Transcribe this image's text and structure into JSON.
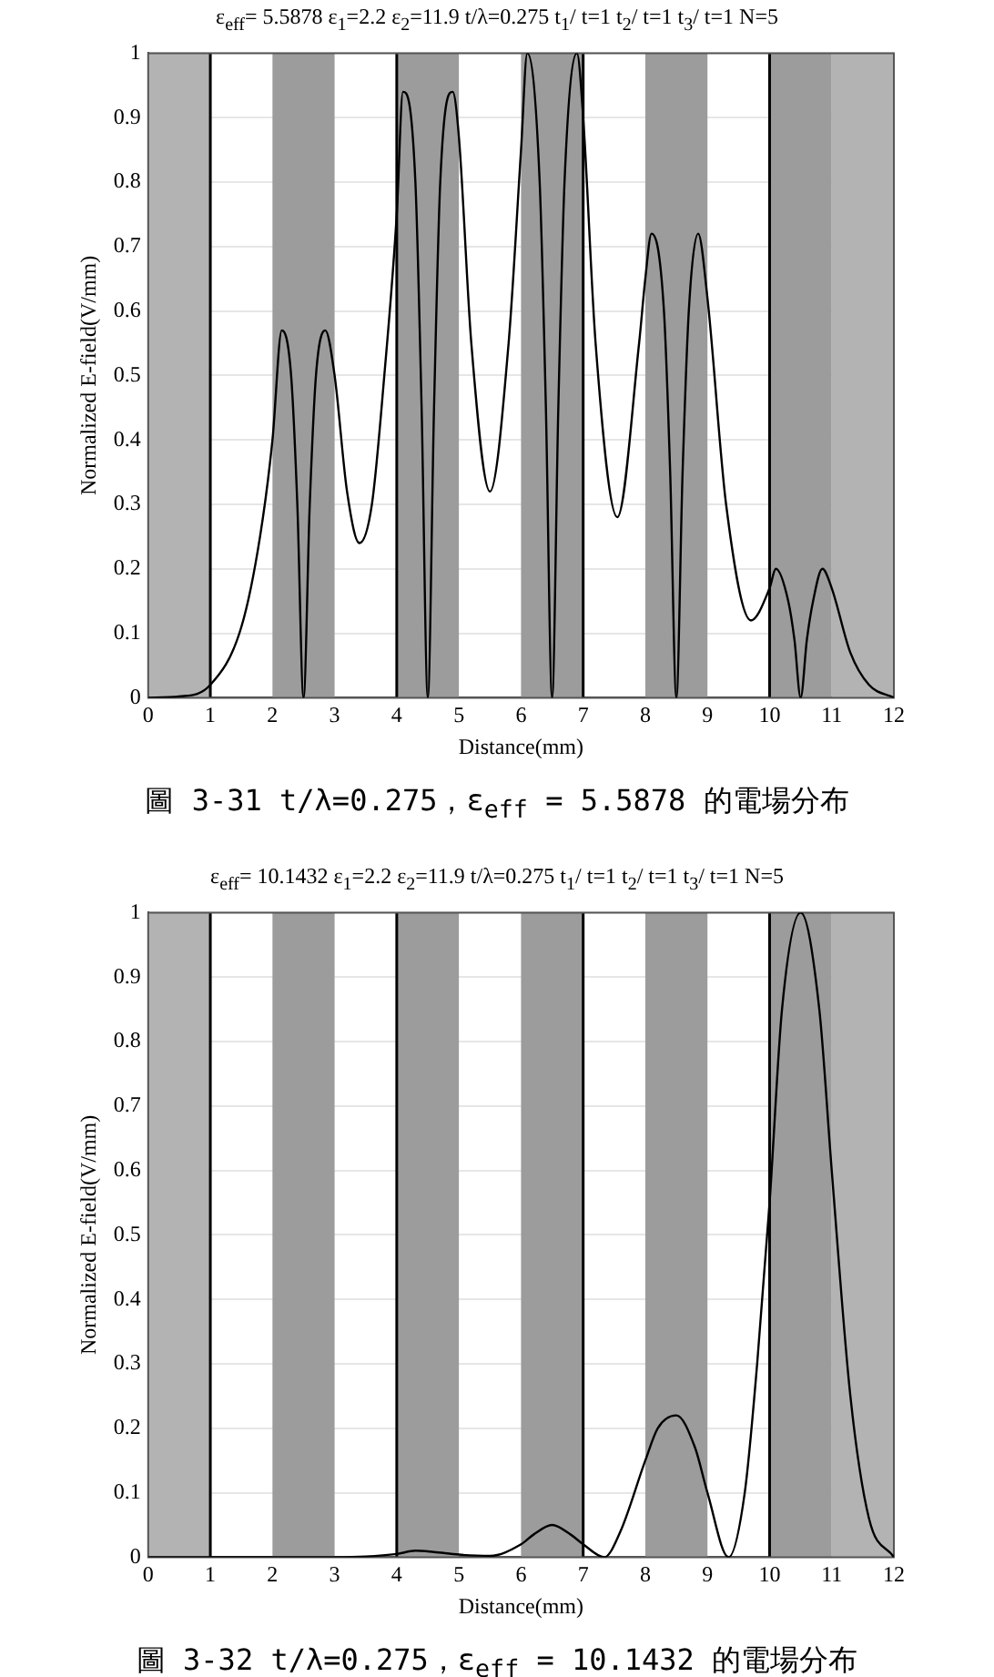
{
  "chart_data": [
    {
      "type": "line",
      "title": "ε$_{eff}$= 5.5878  ε$_{1}$=2.2  ε$_{2}$=11.9  t/λ=0.275 t$_{1}$/ t=1 t$_{2}$/ t=1 t$_{3}$/ t=1 N=5",
      "xlabel": "Distance(mm)",
      "ylabel": "Normalized E-field(V/mm)",
      "x": [
        0,
        0.5,
        1,
        1.5,
        1.8,
        2,
        2.15,
        2.3,
        2.4,
        2.5,
        2.6,
        2.7,
        2.85,
        3,
        3.2,
        3.4,
        3.6,
        3.8,
        4,
        4.1,
        4.3,
        4.4,
        4.5,
        4.6,
        4.7,
        4.9,
        5,
        5.2,
        5.5,
        5.8,
        6,
        6.1,
        6.3,
        6.4,
        6.5,
        6.6,
        6.7,
        6.9,
        7,
        7.2,
        7.55,
        7.9,
        8,
        8.1,
        8.3,
        8.4,
        8.5,
        8.6,
        8.7,
        8.85,
        9,
        9.3,
        9.7,
        10,
        10.1,
        10.3,
        10.4,
        10.5,
        10.6,
        10.7,
        10.85,
        11,
        11.3,
        11.6,
        12
      ],
      "series": [
        {
          "color": "#000000",
          "values": [
            0,
            0.002,
            0.02,
            0.11,
            0.25,
            0.4,
            0.57,
            0.5,
            0.3,
            0,
            0.3,
            0.5,
            0.57,
            0.5,
            0.32,
            0.24,
            0.3,
            0.5,
            0.75,
            0.94,
            0.8,
            0.45,
            0,
            0.45,
            0.8,
            0.94,
            0.87,
            0.55,
            0.32,
            0.55,
            0.85,
            1,
            0.8,
            0.45,
            0,
            0.45,
            0.8,
            1,
            0.9,
            0.55,
            0.28,
            0.55,
            0.65,
            0.72,
            0.6,
            0.35,
            0,
            0.35,
            0.6,
            0.72,
            0.62,
            0.3,
            0.12,
            0.17,
            0.2,
            0.15,
            0.09,
            0,
            0.09,
            0.15,
            0.2,
            0.17,
            0.07,
            0.02,
            0
          ]
        }
      ],
      "xlim": [
        0,
        12
      ],
      "xticks": [
        0,
        1,
        2,
        3,
        4,
        5,
        6,
        7,
        8,
        9,
        10,
        11,
        12
      ],
      "ylim": [
        0,
        1
      ],
      "yticks": [
        0,
        0.1,
        0.2,
        0.3,
        0.4,
        0.5,
        0.6,
        0.7,
        0.8,
        0.9,
        1
      ],
      "grid": "y",
      "legend": false,
      "marker": "none",
      "line_style": "solid",
      "bands": [
        {
          "axis": "x",
          "from": 0,
          "to": 1,
          "color": "#b3b3b3"
        },
        {
          "axis": "x",
          "from": 2,
          "to": 3,
          "color": "#9c9c9c"
        },
        {
          "axis": "x",
          "from": 4,
          "to": 5,
          "color": "#9c9c9c"
        },
        {
          "axis": "x",
          "from": 6,
          "to": 7,
          "color": "#9c9c9c"
        },
        {
          "axis": "x",
          "from": 8,
          "to": 9,
          "color": "#9c9c9c"
        },
        {
          "axis": "x",
          "from": 10,
          "to": 11,
          "color": "#9c9c9c"
        },
        {
          "axis": "x",
          "from": 11,
          "to": 12,
          "color": "#b3b3b3"
        }
      ],
      "ref_lines": [
        {
          "axis": "x",
          "value": 1,
          "color": "#000000"
        },
        {
          "axis": "x",
          "value": 4,
          "color": "#000000"
        },
        {
          "axis": "x",
          "value": 7,
          "color": "#000000"
        },
        {
          "axis": "x",
          "value": 10,
          "color": "#000000"
        }
      ],
      "annotations": [
        "圖 3-31 t/λ=0.275，ε$_{eff}$ = 5.5878 的電場分布"
      ]
    },
    {
      "type": "line",
      "title": "ε$_{eff}$= 10.1432  ε$_{1}$=2.2  ε$_{2}$=11.9  t/λ=0.275 t$_{1}$/ t=1 t$_{2}$/ t=1 t$_{3}$/ t=1 N=5",
      "xlabel": "Distance(mm)",
      "ylabel": "Normalized E-field(V/mm)",
      "x": [
        0,
        1,
        2,
        3,
        3.5,
        4,
        4.3,
        4.6,
        5,
        5.5,
        6,
        6.2,
        6.5,
        6.8,
        7,
        7.34,
        7.6,
        8,
        8.2,
        8.5,
        8.8,
        9,
        9.34,
        9.6,
        9.8,
        10,
        10.2,
        10.5,
        10.8,
        11,
        11.3,
        11.6,
        12
      ],
      "series": [
        {
          "color": "#000000",
          "values": [
            0,
            0,
            0,
            0,
            0.001,
            0.005,
            0.01,
            0.008,
            0.004,
            0.002,
            0.02,
            0.035,
            0.05,
            0.035,
            0.02,
            0,
            0.04,
            0.15,
            0.2,
            0.22,
            0.17,
            0.1,
            0,
            0.1,
            0.3,
            0.55,
            0.85,
            1,
            0.85,
            0.6,
            0.25,
            0.06,
            0
          ]
        }
      ],
      "xlim": [
        0,
        12
      ],
      "xticks": [
        0,
        1,
        2,
        3,
        4,
        5,
        6,
        7,
        8,
        9,
        10,
        11,
        12
      ],
      "ylim": [
        0,
        1
      ],
      "yticks": [
        0,
        0.1,
        0.2,
        0.3,
        0.4,
        0.5,
        0.6,
        0.7,
        0.8,
        0.9,
        1
      ],
      "grid": "y",
      "legend": false,
      "marker": "none",
      "line_style": "solid",
      "bands": [
        {
          "axis": "x",
          "from": 0,
          "to": 1,
          "color": "#b3b3b3"
        },
        {
          "axis": "x",
          "from": 2,
          "to": 3,
          "color": "#9c9c9c"
        },
        {
          "axis": "x",
          "from": 4,
          "to": 5,
          "color": "#9c9c9c"
        },
        {
          "axis": "x",
          "from": 6,
          "to": 7,
          "color": "#9c9c9c"
        },
        {
          "axis": "x",
          "from": 8,
          "to": 9,
          "color": "#9c9c9c"
        },
        {
          "axis": "x",
          "from": 10,
          "to": 11,
          "color": "#9c9c9c"
        },
        {
          "axis": "x",
          "from": 11,
          "to": 12,
          "color": "#b3b3b3"
        }
      ],
      "ref_lines": [
        {
          "axis": "x",
          "value": 1,
          "color": "#000000"
        },
        {
          "axis": "x",
          "value": 4,
          "color": "#000000"
        },
        {
          "axis": "x",
          "value": 7,
          "color": "#000000"
        },
        {
          "axis": "x",
          "value": 10,
          "color": "#000000"
        }
      ],
      "annotations": [
        "圖 3-32 t/λ=0.275，ε$_{eff}$ = 10.1432 的電場分布"
      ]
    }
  ]
}
